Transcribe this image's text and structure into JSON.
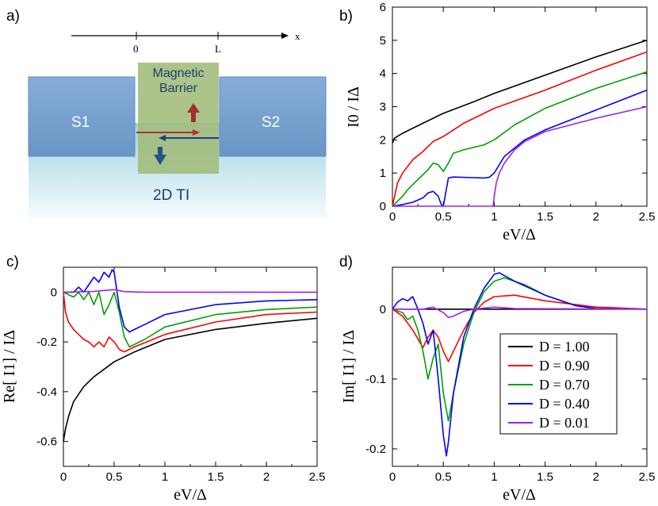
{
  "panel_labels": {
    "a": "a)",
    "b": "b)",
    "c": "c)",
    "d": "d)"
  },
  "schematic": {
    "axis_label": "x",
    "tick_0": "0",
    "tick_L": "L",
    "barrier_line1": "Magnetic",
    "barrier_line2": "Barrier",
    "s1": "S1",
    "s2": "S2",
    "ti": "2D TI"
  },
  "colors": {
    "D1.00": "#000000",
    "D0.90": "#ff0000",
    "D0.70": "#00a000",
    "D0.40": "#0000ff",
    "D0.01": "#a020f0"
  },
  "legend": [
    "D = 1.00",
    "D = 0.90",
    "D = 0.70",
    "D = 0.40",
    "D = 0.01"
  ],
  "chart_data": [
    {
      "panel": "b",
      "type": "line",
      "xlabel": "eV/Δ",
      "ylabel": "I0 / IΔ",
      "xlim": [
        0,
        2.5
      ],
      "ylim": [
        0,
        6
      ],
      "xticks": [
        "0",
        "0.5",
        "1",
        "1.5",
        "2",
        "2.5"
      ],
      "yticks": [
        "0",
        "1",
        "2",
        "3",
        "4",
        "5",
        "6"
      ],
      "series": [
        {
          "name": "D = 1.00",
          "x": [
            0,
            0.02,
            0.1,
            0.3,
            0.5,
            0.8,
            1.0,
            1.5,
            2.0,
            2.5
          ],
          "y": [
            1.9,
            2.05,
            2.2,
            2.5,
            2.8,
            3.15,
            3.4,
            3.95,
            4.5,
            5.0
          ]
        },
        {
          "name": "D = 0.90",
          "x": [
            0,
            0.05,
            0.1,
            0.2,
            0.3,
            0.4,
            0.5,
            0.7,
            1.0,
            1.5,
            2.0,
            2.5
          ],
          "y": [
            0,
            0.7,
            1.0,
            1.4,
            1.65,
            1.95,
            2.1,
            2.5,
            2.95,
            3.5,
            4.1,
            4.65
          ]
        },
        {
          "name": "D = 0.70",
          "x": [
            0,
            0.05,
            0.1,
            0.15,
            0.2,
            0.25,
            0.3,
            0.35,
            0.4,
            0.45,
            0.5,
            0.55,
            0.6,
            0.7,
            0.9,
            1.0,
            1.2,
            1.5,
            2.0,
            2.5
          ],
          "y": [
            0,
            0.15,
            0.3,
            0.5,
            0.65,
            0.8,
            0.95,
            1.1,
            1.3,
            1.25,
            1.05,
            1.3,
            1.6,
            1.7,
            1.85,
            2.0,
            2.45,
            2.95,
            3.55,
            4.05
          ]
        },
        {
          "name": "D = 0.40",
          "x": [
            0,
            0.1,
            0.2,
            0.3,
            0.35,
            0.4,
            0.45,
            0.48,
            0.5,
            0.55,
            0.6,
            0.8,
            0.9,
            0.95,
            1.0,
            1.1,
            1.3,
            1.5,
            2.0,
            2.5
          ],
          "y": [
            0,
            0.05,
            0.12,
            0.25,
            0.4,
            0.45,
            0.3,
            0.05,
            0.0,
            0.85,
            0.88,
            0.86,
            0.85,
            0.87,
            1.0,
            1.5,
            2.0,
            2.3,
            2.9,
            3.5
          ]
        },
        {
          "name": "D = 0.01",
          "x": [
            0,
            0.5,
            0.99,
            1.0,
            1.02,
            1.05,
            1.1,
            1.2,
            1.3,
            1.5,
            2.0,
            2.5
          ],
          "y": [
            0,
            0,
            0,
            0.3,
            0.7,
            1.0,
            1.3,
            1.7,
            1.95,
            2.25,
            2.65,
            3.0
          ]
        }
      ]
    },
    {
      "panel": "c",
      "type": "line",
      "xlabel": "eV/Δ",
      "ylabel": "Re[ I1] / IΔ",
      "xlim": [
        0,
        2.5
      ],
      "ylim": [
        -0.7,
        0.1
      ],
      "xticks": [
        "0",
        "0.5",
        "1",
        "1.5",
        "2",
        "2.5"
      ],
      "yticks": [
        "0",
        "-0.2",
        "-0.4",
        "-0.6"
      ],
      "series": [
        {
          "name": "D = 1.00",
          "x": [
            0,
            0.02,
            0.05,
            0.1,
            0.2,
            0.3,
            0.5,
            0.7,
            1.0,
            1.5,
            2.0,
            2.5
          ],
          "y": [
            -0.6,
            -0.55,
            -0.5,
            -0.44,
            -0.38,
            -0.34,
            -0.28,
            -0.24,
            -0.19,
            -0.15,
            -0.125,
            -0.105
          ]
        },
        {
          "name": "D = 0.90",
          "x": [
            0,
            0.02,
            0.05,
            0.1,
            0.15,
            0.2,
            0.25,
            0.3,
            0.35,
            0.4,
            0.45,
            0.5,
            0.55,
            0.6,
            0.65,
            0.7,
            1.0,
            1.5,
            2.0,
            2.5
          ],
          "y": [
            0,
            -0.08,
            -0.12,
            -0.15,
            -0.17,
            -0.19,
            -0.2,
            -0.22,
            -0.2,
            -0.22,
            -0.18,
            -0.2,
            -0.23,
            -0.24,
            -0.23,
            -0.22,
            -0.17,
            -0.12,
            -0.09,
            -0.08
          ]
        },
        {
          "name": "D = 0.70",
          "x": [
            0,
            0.05,
            0.1,
            0.15,
            0.2,
            0.25,
            0.3,
            0.35,
            0.4,
            0.45,
            0.5,
            0.55,
            0.6,
            0.65,
            0.7,
            0.8,
            1.0,
            1.5,
            2.0,
            2.5
          ],
          "y": [
            0,
            -0.01,
            -0.02,
            0.0,
            -0.03,
            0.0,
            -0.05,
            0.0,
            -0.09,
            -0.05,
            0.0,
            -0.08,
            -0.18,
            -0.22,
            -0.21,
            -0.19,
            -0.14,
            -0.09,
            -0.07,
            -0.06
          ]
        },
        {
          "name": "D = 0.40",
          "x": [
            0,
            0.1,
            0.15,
            0.2,
            0.25,
            0.3,
            0.35,
            0.4,
            0.45,
            0.48,
            0.5,
            0.55,
            0.6,
            0.65,
            0.7,
            0.8,
            1.0,
            1.5,
            2.0,
            2.5
          ],
          "y": [
            0,
            0.0,
            0.02,
            0.0,
            0.03,
            0.06,
            0.04,
            0.08,
            0.06,
            0.09,
            0.08,
            -0.06,
            -0.14,
            -0.16,
            -0.15,
            -0.13,
            -0.09,
            -0.05,
            -0.035,
            -0.03
          ]
        },
        {
          "name": "D = 0.01",
          "x": [
            0,
            0.3,
            0.5,
            0.6,
            0.8,
            1.0,
            2.5
          ],
          "y": [
            0,
            0.003,
            0.01,
            0.002,
            0,
            0,
            0
          ]
        }
      ]
    },
    {
      "panel": "d",
      "type": "line",
      "xlabel": "eV/Δ",
      "ylabel": "Im[ I1] / IΔ",
      "xlim": [
        0,
        2.5
      ],
      "ylim": [
        -0.225,
        0.06
      ],
      "xticks": [
        "0",
        "0.5",
        "1",
        "1.5",
        "2",
        "2.5"
      ],
      "yticks": [
        "0",
        "-0.1",
        "-0.2"
      ],
      "series": [
        {
          "name": "D = 1.00",
          "x": [
            0,
            2.5
          ],
          "y": [
            0,
            0
          ]
        },
        {
          "name": "D = 0.90",
          "x": [
            0,
            0.1,
            0.2,
            0.3,
            0.35,
            0.4,
            0.45,
            0.5,
            0.55,
            0.6,
            0.7,
            0.8,
            0.9,
            1.0,
            1.2,
            1.5,
            2.0,
            2.5
          ],
          "y": [
            0,
            -0.01,
            -0.03,
            -0.055,
            -0.04,
            -0.03,
            -0.04,
            -0.06,
            -0.075,
            -0.06,
            -0.03,
            -0.005,
            0.01,
            0.018,
            0.02,
            0.012,
            0.003,
            0
          ]
        },
        {
          "name": "D = 0.70",
          "x": [
            0,
            0.1,
            0.15,
            0.2,
            0.25,
            0.3,
            0.35,
            0.4,
            0.45,
            0.5,
            0.55,
            0.6,
            0.7,
            0.8,
            0.9,
            1.0,
            1.1,
            1.3,
            1.5,
            1.8,
            2.0,
            2.5
          ],
          "y": [
            0,
            -0.005,
            -0.015,
            -0.01,
            -0.03,
            -0.06,
            -0.1,
            -0.07,
            -0.05,
            -0.12,
            -0.16,
            -0.12,
            -0.05,
            -0.005,
            0.025,
            0.04,
            0.045,
            0.035,
            0.02,
            0.005,
            0.001,
            0
          ]
        },
        {
          "name": "D = 0.40",
          "x": [
            0,
            0.05,
            0.1,
            0.15,
            0.2,
            0.25,
            0.3,
            0.35,
            0.4,
            0.45,
            0.5,
            0.53,
            0.55,
            0.6,
            0.7,
            0.8,
            0.9,
            1.0,
            1.05,
            1.2,
            1.5,
            1.8,
            2.0,
            2.5
          ],
          "y": [
            0,
            0.01,
            0.015,
            0.012,
            0.018,
            0.0,
            -0.02,
            -0.05,
            -0.03,
            -0.1,
            -0.18,
            -0.21,
            -0.19,
            -0.12,
            -0.04,
            0.0,
            0.03,
            0.05,
            0.052,
            0.04,
            0.02,
            0.005,
            0.001,
            0
          ]
        },
        {
          "name": "D = 0.01",
          "x": [
            0,
            0.3,
            0.4,
            0.5,
            0.55,
            0.6,
            0.7,
            0.8,
            1.0,
            1.2,
            2.5
          ],
          "y": [
            0,
            0.0,
            0.003,
            -0.005,
            -0.012,
            -0.01,
            -0.003,
            0.0,
            0.003,
            0.001,
            0
          ]
        }
      ]
    }
  ]
}
